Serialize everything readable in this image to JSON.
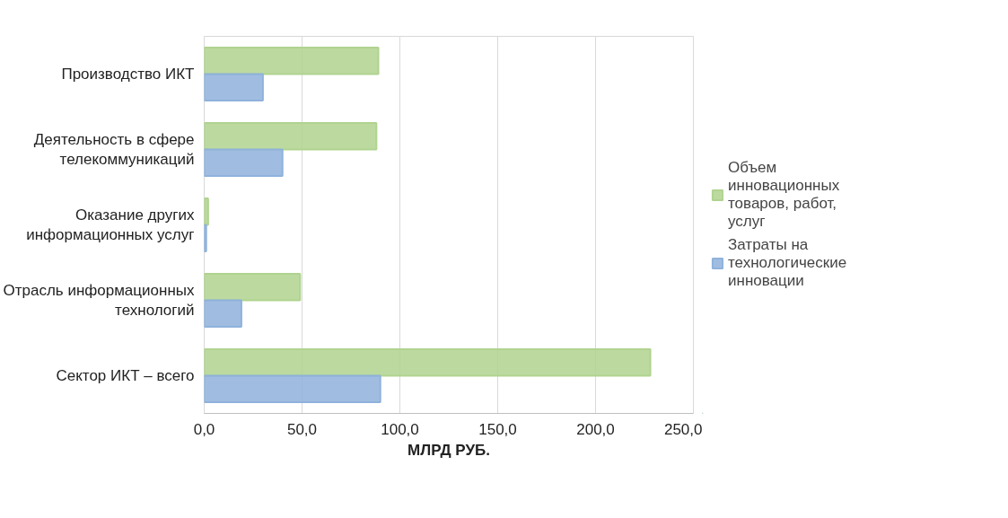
{
  "chart_data": {
    "type": "bar",
    "orientation": "horizontal",
    "xlabel": "МЛРД РУБ.",
    "categories": [
      "Производство ИКТ",
      "Деятельность в сфере телекоммуникаций",
      "Оказание других информационных услуг",
      "Отрасль информационных технологий",
      "Сектор ИКТ – всего"
    ],
    "series": [
      {
        "name": "Объем инновационных товаров, работ, услуг",
        "color": "#b0d38f",
        "values": [
          89,
          88,
          2,
          49,
          228
        ]
      },
      {
        "name": "Затраты на технологические инновации",
        "color": "#8fb2dc",
        "values": [
          30,
          40,
          1,
          19,
          90
        ]
      }
    ],
    "xlim": [
      0,
      250
    ],
    "xticks": [
      {
        "value": 0,
        "label": "0,0"
      },
      {
        "value": 50,
        "label": "50,0"
      },
      {
        "value": 100,
        "label": "100,0"
      },
      {
        "value": 150,
        "label": "150,0"
      },
      {
        "value": 200,
        "label": "200,0"
      },
      {
        "value": 250,
        "label": "250,0"
      }
    ],
    "grid": "x",
    "legend": "right"
  }
}
